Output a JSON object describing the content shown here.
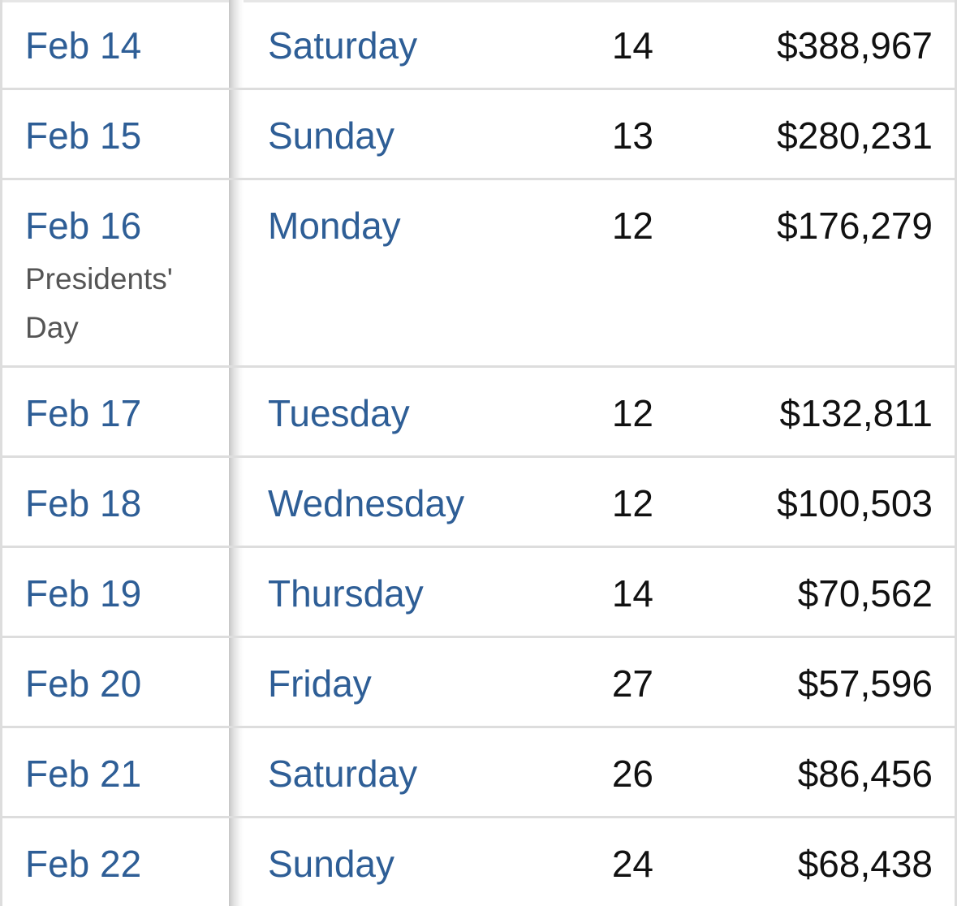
{
  "table": {
    "rows": [
      {
        "date": "Feb 14",
        "holiday": "",
        "weekday": "Saturday",
        "count": "14",
        "gross": "$388,967"
      },
      {
        "date": "Feb 15",
        "holiday": "",
        "weekday": "Sunday",
        "count": "13",
        "gross": "$280,231"
      },
      {
        "date": "Feb 16",
        "holiday": "Presidents' Day",
        "weekday": "Monday",
        "count": "12",
        "gross": "$176,279"
      },
      {
        "date": "Feb 17",
        "holiday": "",
        "weekday": "Tuesday",
        "count": "12",
        "gross": "$132,811"
      },
      {
        "date": "Feb 18",
        "holiday": "",
        "weekday": "Wednesday",
        "count": "12",
        "gross": "$100,503"
      },
      {
        "date": "Feb 19",
        "holiday": "",
        "weekday": "Thursday",
        "count": "14",
        "gross": "$70,562"
      },
      {
        "date": "Feb 20",
        "holiday": "",
        "weekday": "Friday",
        "count": "27",
        "gross": "$57,596"
      },
      {
        "date": "Feb 21",
        "holiday": "",
        "weekday": "Saturday",
        "count": "26",
        "gross": "$86,456"
      },
      {
        "date": "Feb 22",
        "holiday": "",
        "weekday": "Sunday",
        "count": "24",
        "gross": "$68,438"
      }
    ]
  },
  "colors": {
    "link": "#2e5e96",
    "text": "#111111",
    "note": "#555555",
    "border": "#dddddd"
  }
}
